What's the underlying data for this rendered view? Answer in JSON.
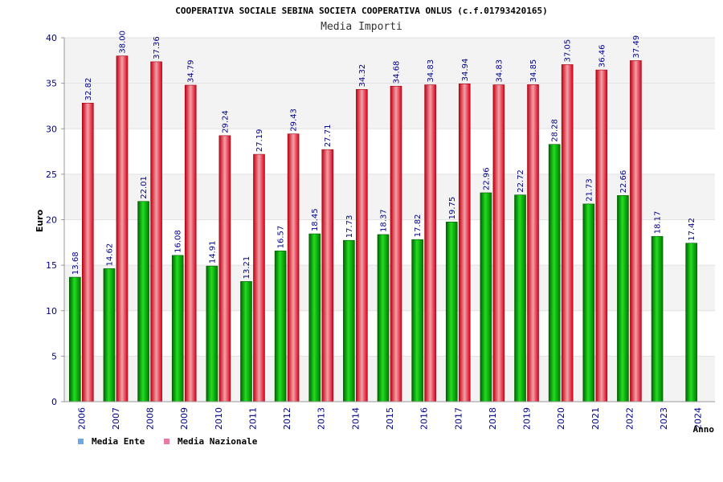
{
  "colors": {
    "ente": "#00b000",
    "nazionale": "#e8202a",
    "legend_ente": "#6ea8e8",
    "legend_nazionale": "#e87aa8",
    "band": "#f3f3f3",
    "axis_text": "#00008b"
  },
  "chart_data": {
    "type": "bar",
    "title": "COOPERATIVA SOCIALE SEBINA SOCIETA COOPERATIVA ONLUS (c.f.01793420165)",
    "subtitle": "Media Importi",
    "xlabel": "Anno",
    "ylabel": "Euro",
    "ylim": [
      0,
      40
    ],
    "yticks": [
      0,
      5,
      10,
      15,
      20,
      25,
      30,
      35,
      40
    ],
    "categories": [
      "2006",
      "2007",
      "2008",
      "2009",
      "2010",
      "2011",
      "2012",
      "2013",
      "2014",
      "2015",
      "2016",
      "2017",
      "2018",
      "2019",
      "2020",
      "2021",
      "2022",
      "2023",
      "2024"
    ],
    "series": [
      {
        "name": "Media Ente",
        "values": [
          13.68,
          14.62,
          22.01,
          16.08,
          14.91,
          13.21,
          16.57,
          18.45,
          17.73,
          18.37,
          17.82,
          19.75,
          22.96,
          22.72,
          28.28,
          21.73,
          22.66,
          18.17,
          17.42
        ]
      },
      {
        "name": "Media Nazionale",
        "values": [
          32.82,
          38.0,
          37.36,
          34.79,
          29.24,
          27.19,
          29.43,
          27.71,
          34.32,
          34.68,
          34.83,
          34.94,
          34.83,
          34.85,
          37.05,
          36.46,
          37.49,
          null,
          null
        ]
      }
    ],
    "value_labels": [
      [
        "13.68",
        "14.62",
        "22.01",
        "16.08",
        "14.91",
        "13.21",
        "16.57",
        "18.45",
        "17.73",
        "18.37",
        "17.82",
        "19.75",
        "22.96",
        "22.72",
        "28.28",
        "21.73",
        "22.66",
        "18.17",
        "17.42"
      ],
      [
        "32.82",
        "38.00",
        "37.36",
        "34.79",
        "29.24",
        "27.19",
        "29.43",
        "27.71",
        "34.32",
        "34.68",
        "34.83",
        "34.94",
        "34.83",
        "34.85",
        "37.05",
        "36.46",
        "37.49",
        null,
        null
      ]
    ],
    "legend": [
      "Media Ente",
      "Media Nazionale"
    ],
    "legend_position": "bottom-left",
    "grid": true
  }
}
